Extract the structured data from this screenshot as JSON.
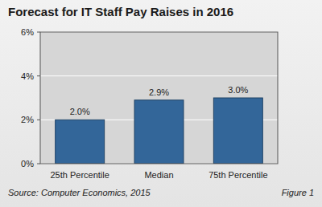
{
  "chart_data": {
    "type": "bar",
    "title": "Forecast for IT Staff Pay Raises in 2016",
    "categories": [
      "25th Percentile",
      "Median",
      "75th Percentile"
    ],
    "values": [
      2.0,
      2.9,
      3.0
    ],
    "value_labels": [
      "2.0%",
      "2.9%",
      "3.0%"
    ],
    "color": "#336699",
    "ylim": [
      0,
      6
    ],
    "yticks": [
      {
        "value": 0,
        "label": "0%"
      },
      {
        "value": 2,
        "label": "2%"
      },
      {
        "value": 4,
        "label": "4%"
      },
      {
        "value": 6,
        "label": "6%"
      }
    ],
    "grid": true,
    "data_labels": true,
    "annotations": [
      "Source: Computer Economics, 2015",
      "Figure 1"
    ]
  }
}
